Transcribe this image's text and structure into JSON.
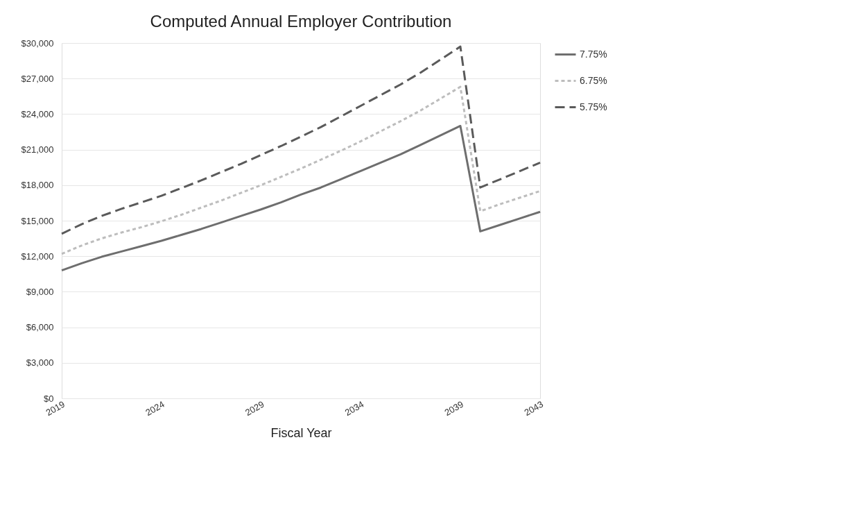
{
  "chart_data": {
    "type": "line",
    "title": "Computed Annual Employer Contribution",
    "xlabel": "Fiscal Year",
    "x": [
      2019,
      2020,
      2021,
      2022,
      2023,
      2024,
      2025,
      2026,
      2027,
      2028,
      2029,
      2030,
      2031,
      2032,
      2033,
      2034,
      2035,
      2036,
      2037,
      2038,
      2039,
      2040,
      2041,
      2042,
      2043
    ],
    "series": [
      {
        "name": "7.75%",
        "color": "#6e6e6e",
        "line_style": "solid",
        "values": [
          10800,
          11400,
          11950,
          12400,
          12850,
          13300,
          13800,
          14300,
          14850,
          15400,
          15950,
          16550,
          17200,
          17800,
          18500,
          19200,
          19900,
          20600,
          21400,
          22200,
          23000,
          14100,
          14650,
          15200,
          15750
        ]
      },
      {
        "name": "6.75%",
        "color": "#bdbdbd",
        "line_style": "dotted",
        "values": [
          12200,
          12900,
          13500,
          14000,
          14450,
          14950,
          15500,
          16100,
          16700,
          17350,
          18000,
          18700,
          19400,
          20150,
          20900,
          21700,
          22550,
          23400,
          24300,
          25300,
          26300,
          15800,
          16400,
          16950,
          17500
        ]
      },
      {
        "name": "5.75%",
        "color": "#5a5a5a",
        "line_style": "dashed",
        "values": [
          13900,
          14700,
          15400,
          16000,
          16550,
          17100,
          17750,
          18400,
          19100,
          19800,
          20550,
          21300,
          22100,
          22900,
          23800,
          24700,
          25600,
          26500,
          27500,
          28600,
          29700,
          17800,
          18500,
          19200,
          19900
        ]
      }
    ],
    "xlim": [
      2019,
      2043
    ],
    "xticks": [
      2019,
      2024,
      2029,
      2034,
      2039,
      2043
    ],
    "ylim": [
      0,
      30000
    ],
    "yticks": [
      {
        "value": 0,
        "label": "$0"
      },
      {
        "value": 3000,
        "label": "$3,000"
      },
      {
        "value": 6000,
        "label": "$6,000"
      },
      {
        "value": 9000,
        "label": "$9,000"
      },
      {
        "value": 12000,
        "label": "$12,000"
      },
      {
        "value": 15000,
        "label": "$15,000"
      },
      {
        "value": 18000,
        "label": "$18,000"
      },
      {
        "value": 21000,
        "label": "$21,000"
      },
      {
        "value": 24000,
        "label": "$24,000"
      },
      {
        "value": 27000,
        "label": "$27,000"
      },
      {
        "value": 30000,
        "label": "$30,000"
      }
    ],
    "grid": "y",
    "legend": "right",
    "marker": "none"
  }
}
